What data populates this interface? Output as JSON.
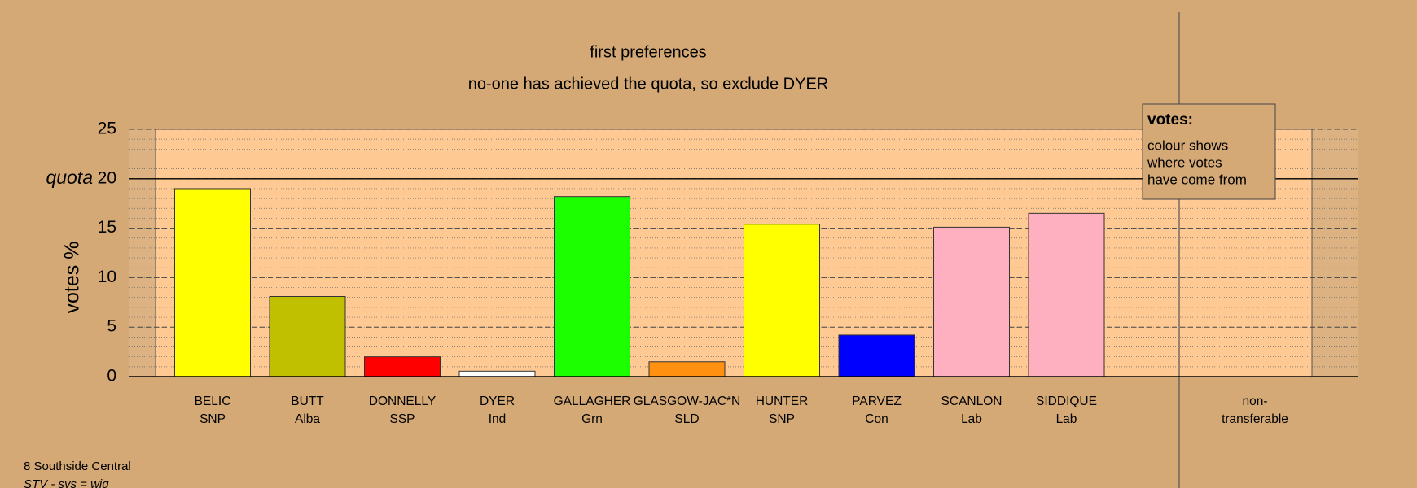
{
  "chart_data": {
    "type": "bar",
    "title": "first preferences",
    "subtitle": "no-one has achieved the quota, so exclude DYER",
    "y_label": "votes %",
    "categories": [
      "BELIC",
      "BUTT",
      "DONNELLY",
      "DYER",
      "GALLAGHER",
      "GLASGOW-JAC*N",
      "HUNTER",
      "PARVEZ",
      "SCANLON",
      "SIDDIQUE"
    ],
    "parties": [
      "SNP",
      "Alba",
      "SSP",
      "Ind",
      "Grn",
      "SLD",
      "SNP",
      "Con",
      "Lab",
      "Lab"
    ],
    "values": [
      19,
      8.1,
      2,
      0.55,
      18.2,
      1.5,
      15.4,
      4.2,
      15.1,
      16.5
    ],
    "colors": [
      "#ffff00",
      "#c0c000",
      "#ff0000",
      "#ffffff",
      "#1cff00",
      "#ff9010",
      "#ffff00",
      "#0000ff",
      "#ffb0c0",
      "#ffb0c0"
    ],
    "non_transferable_label": [
      "non-",
      "transferable"
    ],
    "quota": {
      "value": 20,
      "label": "quota"
    },
    "ylim": [
      0,
      25
    ],
    "yticks": [
      0,
      5,
      10,
      15,
      20,
      25
    ],
    "grid": true,
    "minor_grid": true,
    "legend": {
      "title": "votes:",
      "lines": [
        "colour shows",
        "where votes",
        "have come from"
      ]
    },
    "footer": [
      "8 Southside Central",
      "STV - sys = wig"
    ]
  }
}
